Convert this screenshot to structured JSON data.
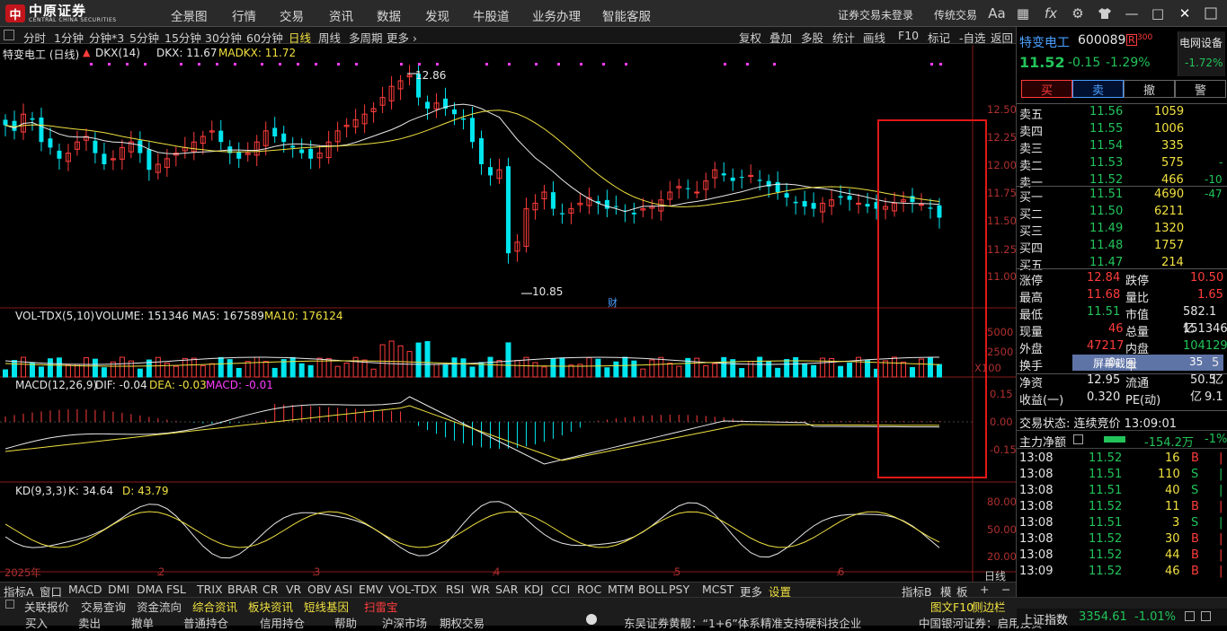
{
  "logo": {
    "mark": "中",
    "brand": "中原证券",
    "sub": "CENTRAL CHINA SECURITIES"
  },
  "nav": [
    "全景图",
    "行情",
    "交易",
    "资讯",
    "数据",
    "发现",
    "牛股道",
    "业务办理",
    "智能客服"
  ],
  "top_right": {
    "login": "证券交易未登录",
    "mode": "传统交易"
  },
  "icons": {
    "font": "Aa",
    "grid": "▦",
    "fx": "fx",
    "gear": "⚙",
    "shirt": "👕",
    "min": "—",
    "max": "□",
    "close": "✕"
  },
  "periods": [
    "分时",
    "1分钟",
    "分钟*3",
    "5分钟",
    "15分钟",
    "30分钟",
    "60分钟",
    "日线",
    "周线",
    "多周期",
    "更多 ›"
  ],
  "active_period": "日线",
  "tools": [
    "复权",
    "叠加",
    "多股",
    "统计",
    "画线",
    "F10",
    "标记",
    "-自选",
    "返回"
  ],
  "chart": {
    "title": "特变电工 (日线)",
    "indicator": "DKX(14)",
    "dkx": "DKX: 11.67",
    "madkx": "MADKX: 11.72",
    "high_label": "12.86",
    "low_label": "10.85",
    "cai": "财",
    "price_axis": [
      "12.50",
      "12.25",
      "12.00",
      "11.75",
      "11.50",
      "11.25",
      "11.00"
    ],
    "vol_title": "VOL-TDX(5,10)",
    "vol_value": "VOLUME: 151346",
    "vol_ma5": "MA5: 167589",
    "vol_ma10": "MA10: 176124",
    "vol_axis": [
      "5000",
      "2500",
      "X100"
    ],
    "macd_title": "MACD(12,26,9)",
    "macd_dif": "DIF: -0.04",
    "macd_dea": "DEA: -0.03",
    "macd_macd": "MACD: -0.01",
    "macd_axis": [
      "0.15",
      "0.00",
      "-0.15"
    ],
    "kd_title": "KD(9,3,3)",
    "kd_k": "K: 34.64",
    "kd_d": "D: 43.79",
    "kd_axis": [
      "80.00",
      "50.00",
      "20.00"
    ],
    "months": [
      "2025年",
      "2",
      "3",
      "4",
      "5",
      "6"
    ],
    "bottom_label": "日线"
  },
  "indicator_tabs": [
    "指标A",
    "窗口",
    "MACD",
    "DMI",
    "DMA",
    "FSL",
    "TRIX",
    "BRAR",
    "CR",
    "VR",
    "OBV",
    "ASI",
    "EMV",
    "VOL-TDX",
    "RSI",
    "WR",
    "SAR",
    "KDJ",
    "CCI",
    "ROC",
    "MTM",
    "BOLL",
    "PSY",
    "MCST",
    "更多",
    "设置"
  ],
  "indicator_right": [
    "指标B",
    "模",
    "板",
    "+",
    "−"
  ],
  "stock": {
    "name": "特变电工",
    "code": "600089",
    "badge": "R",
    "badge_num": "300",
    "industry": "电网设备",
    "industry_chg": "-1.72%",
    "price": "11.52",
    "change": "-0.15",
    "pct": "-1.29%"
  },
  "trade_buttons": [
    "买",
    "卖",
    "撤",
    "警"
  ],
  "asks": [
    [
      "卖五",
      "11.56",
      "1059",
      ""
    ],
    [
      "卖四",
      "11.55",
      "1006",
      ""
    ],
    [
      "卖三",
      "11.54",
      "335",
      ""
    ],
    [
      "卖二",
      "11.53",
      "575",
      "-"
    ],
    [
      "卖一",
      "11.52",
      "466",
      "-10"
    ]
  ],
  "bids": [
    [
      "买一",
      "11.51",
      "4690",
      "-47"
    ],
    [
      "买二",
      "11.50",
      "6211",
      ""
    ],
    [
      "买三",
      "11.49",
      "1320",
      ""
    ],
    [
      "买四",
      "11.48",
      "1757",
      ""
    ],
    [
      "买五",
      "11.47",
      "214",
      ""
    ]
  ],
  "stats": [
    [
      "涨停",
      "12.84",
      "跌停",
      "10.50"
    ],
    [
      "最高",
      "11.68",
      "量比",
      "1.65"
    ],
    [
      "最低",
      "11.51",
      "市值",
      "582.1亿"
    ],
    [
      "现量",
      "46",
      "总量",
      "151346"
    ],
    [
      "外盘",
      "47217",
      "内盘",
      "104129"
    ],
    [
      "换手",
      "0.",
      "本",
      "5亿"
    ],
    [
      "净资",
      "12.95",
      "流通",
      "50.5亿"
    ],
    [
      "收益(一)",
      "0.320",
      "PE(动)",
      "9.1"
    ]
  ],
  "screenshot_tooltip": "屏幕截图",
  "tooltip_num": "35",
  "trade_status": "交易状态: 连续竞价 13:09:01",
  "main_flow": {
    "label": "主力净额",
    "value": "-154.2万",
    "pct": "-1%"
  },
  "ticks": [
    [
      "13:08",
      "11.52",
      "16",
      "B"
    ],
    [
      "13:08",
      "11.51",
      "110",
      "S"
    ],
    [
      "13:08",
      "11.51",
      "40",
      "S"
    ],
    [
      "13:08",
      "11.52",
      "11",
      "B"
    ],
    [
      "13:08",
      "11.51",
      "3",
      "S"
    ],
    [
      "13:08",
      "11.52",
      "30",
      "B"
    ],
    [
      "13:08",
      "11.52",
      "44",
      "B"
    ],
    [
      "13:09",
      "11.52",
      "46",
      "B"
    ]
  ],
  "status1": [
    "关联报价",
    "交易查询",
    "资金流向",
    "综合资讯",
    "板块资讯",
    "短线基因",
    "扫雷宝"
  ],
  "status1_right": [
    "图文F10",
    "侧边栏",
    "日线"
  ],
  "status2": [
    "买入",
    "卖出",
    "撤单",
    "普通持仓",
    "信用持仓",
    "帮助",
    "沪深市场",
    "期权交易"
  ],
  "news": "东吴证券黄靓：“1+6”体系精准支持硬科技企业",
  "news2": "中国银河证券：启用投资",
  "index": {
    "name": "上证指数",
    "value": "3354.61",
    "pct": "-1.01%"
  },
  "colors": {
    "up": "#ff3c3c",
    "down": "#00e5ee",
    "dkx": "#ffffff",
    "madkx": "#f0e040"
  }
}
